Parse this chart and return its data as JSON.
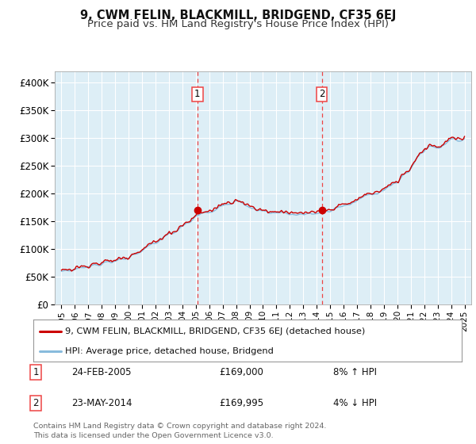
{
  "title": "9, CWM FELIN, BLACKMILL, BRIDGEND, CF35 6EJ",
  "subtitle": "Price paid vs. HM Land Registry's House Price Index (HPI)",
  "ylim": [
    0,
    420000
  ],
  "yticks": [
    0,
    50000,
    100000,
    150000,
    200000,
    250000,
    300000,
    350000,
    400000
  ],
  "ytick_labels": [
    "£0",
    "£50K",
    "£100K",
    "£150K",
    "£200K",
    "£250K",
    "£300K",
    "£350K",
    "£400K"
  ],
  "background_color": "#ffffff",
  "plot_bg_color": "#ddeef6",
  "grid_color": "#ffffff",
  "line1_color": "#cc0000",
  "line2_color": "#88bbdd",
  "transaction1_x": 2005.12,
  "transaction1_y": 169000,
  "transaction2_x": 2014.38,
  "transaction2_y": 169995,
  "vline_color": "#ee4444",
  "legend_line1": "9, CWM FELIN, BLACKMILL, BRIDGEND, CF35 6EJ (detached house)",
  "legend_line2": "HPI: Average price, detached house, Bridgend",
  "table_row1": [
    "1",
    "24-FEB-2005",
    "£169,000",
    "8% ↑ HPI"
  ],
  "table_row2": [
    "2",
    "23-MAY-2014",
    "£169,995",
    "4% ↓ HPI"
  ],
  "footer": "Contains HM Land Registry data © Crown copyright and database right 2024.\nThis data is licensed under the Open Government Licence v3.0.",
  "xlim": [
    1994.5,
    2025.5
  ],
  "x_tick_years": [
    1995,
    1996,
    1997,
    1998,
    1999,
    2000,
    2001,
    2002,
    2003,
    2004,
    2005,
    2006,
    2007,
    2008,
    2009,
    2010,
    2011,
    2012,
    2013,
    2014,
    2015,
    2016,
    2017,
    2018,
    2019,
    2020,
    2021,
    2022,
    2023,
    2024,
    2025
  ]
}
